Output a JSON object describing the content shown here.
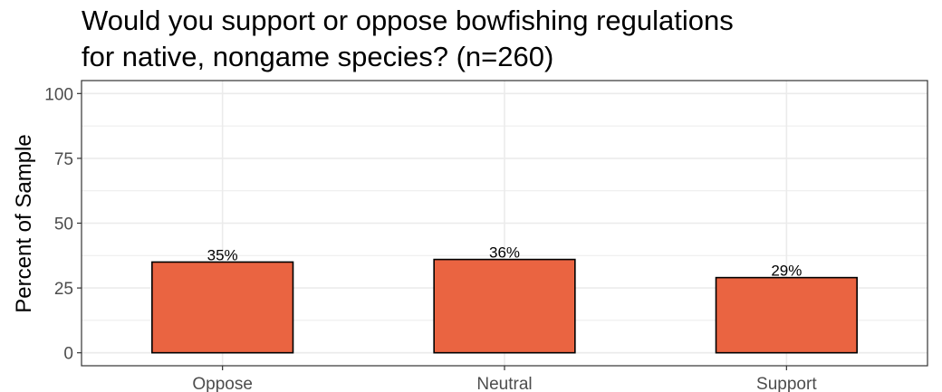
{
  "chart_data": {
    "type": "bar",
    "title_lines": [
      "Would you support or oppose bowfishing regulations",
      "for native, nongame species? (n=260)"
    ],
    "xlabel": "",
    "ylabel": "Percent of Sample",
    "categories": [
      "Oppose",
      "Neutral",
      "Support"
    ],
    "values": [
      35,
      36,
      29
    ],
    "data_labels": [
      "35%",
      "36%",
      "29%"
    ],
    "ylim": [
      0,
      100
    ],
    "y_ticks": [
      0,
      25,
      50,
      75,
      100
    ],
    "grid": true,
    "legend": "none",
    "colors": {
      "bar_fill": "#EA6441",
      "bar_stroke": "#000000",
      "grid": "#ebebeb",
      "panel_border": "#333333"
    }
  }
}
